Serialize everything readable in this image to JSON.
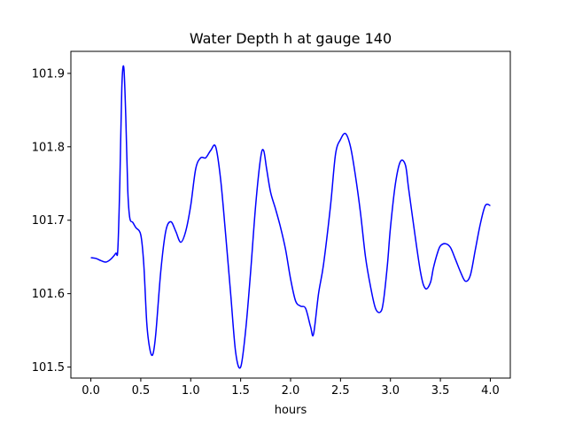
{
  "chart_data": {
    "type": "line",
    "title": "Water Depth h at gauge 140",
    "xlabel": "hours",
    "ylabel": "",
    "xlim": [
      -0.2,
      4.2
    ],
    "ylim": [
      101.485,
      101.93
    ],
    "xticks": [
      0.0,
      0.5,
      1.0,
      1.5,
      2.0,
      2.5,
      3.0,
      3.5,
      4.0
    ],
    "xtick_labels": [
      "0.0",
      "0.5",
      "1.0",
      "1.5",
      "2.0",
      "2.5",
      "3.0",
      "3.5",
      "4.0"
    ],
    "yticks": [
      101.5,
      101.6,
      101.7,
      101.8,
      101.9
    ],
    "ytick_labels": [
      "101.5",
      "101.6",
      "101.7",
      "101.8",
      "101.9"
    ],
    "grid": false,
    "series": [
      {
        "color": "#0000ff",
        "x": [
          0.0,
          0.05,
          0.1,
          0.15,
          0.2,
          0.25,
          0.27,
          0.29,
          0.31,
          0.33,
          0.35,
          0.37,
          0.39,
          0.42,
          0.45,
          0.5,
          0.53,
          0.56,
          0.59,
          0.62,
          0.65,
          0.7,
          0.75,
          0.8,
          0.85,
          0.9,
          0.95,
          1.0,
          1.05,
          1.1,
          1.15,
          1.2,
          1.25,
          1.3,
          1.35,
          1.4,
          1.45,
          1.5,
          1.55,
          1.6,
          1.65,
          1.7,
          1.73,
          1.76,
          1.8,
          1.85,
          1.9,
          1.95,
          2.0,
          2.05,
          2.1,
          2.15,
          2.2,
          2.23,
          2.28,
          2.33,
          2.4,
          2.45,
          2.5,
          2.55,
          2.6,
          2.65,
          2.7,
          2.75,
          2.8,
          2.85,
          2.9,
          2.93,
          2.97,
          3.0,
          3.05,
          3.1,
          3.15,
          3.18,
          3.22,
          3.3,
          3.35,
          3.4,
          3.43,
          3.47,
          3.5,
          3.55,
          3.6,
          3.65,
          3.7,
          3.75,
          3.8,
          3.85,
          3.9,
          3.95,
          4.0
        ],
        "y": [
          101.649,
          101.648,
          101.645,
          101.643,
          101.647,
          101.655,
          101.66,
          101.75,
          101.88,
          101.908,
          101.84,
          101.74,
          101.703,
          101.697,
          101.69,
          101.68,
          101.64,
          101.56,
          101.525,
          101.517,
          101.545,
          101.63,
          101.685,
          101.698,
          101.685,
          101.67,
          101.685,
          101.72,
          101.77,
          101.785,
          101.785,
          101.795,
          101.8,
          101.755,
          101.68,
          101.6,
          101.52,
          101.5,
          101.55,
          101.63,
          101.72,
          101.785,
          101.795,
          101.77,
          101.738,
          101.715,
          101.69,
          101.66,
          101.62,
          101.59,
          101.583,
          101.58,
          101.555,
          101.545,
          101.6,
          101.64,
          101.72,
          101.79,
          101.81,
          101.818,
          101.8,
          101.76,
          101.71,
          101.65,
          101.61,
          101.58,
          101.575,
          101.59,
          101.64,
          101.69,
          101.75,
          101.78,
          101.775,
          101.745,
          101.705,
          101.63,
          101.607,
          101.615,
          101.635,
          101.655,
          101.665,
          101.668,
          101.663,
          101.647,
          101.63,
          101.617,
          101.625,
          101.66,
          101.695,
          101.72,
          101.72
        ]
      }
    ]
  }
}
